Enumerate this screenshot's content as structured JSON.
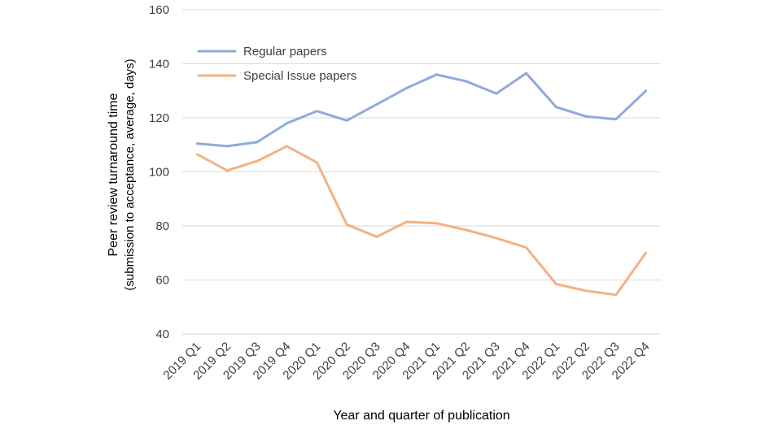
{
  "chart_data": {
    "type": "line",
    "title": "",
    "xlabel": "Year and quarter of publication",
    "ylabel_main": "Peer review turnaround time",
    "ylabel_sub": "(submission to acceptance, average, days)",
    "ylim": [
      40,
      160
    ],
    "yticks": [
      40,
      60,
      80,
      100,
      120,
      140,
      160
    ],
    "grid": true,
    "legend_position": "top-left",
    "categories": [
      "2019 Q1",
      "2019 Q2",
      "2019 Q3",
      "2019 Q4",
      "2020 Q1",
      "2020 Q2",
      "2020 Q3",
      "2020 Q4",
      "2021 Q1",
      "2021 Q2",
      "2021 Q3",
      "2021 Q4",
      "2022 Q1",
      "2022 Q2",
      "2022 Q3",
      "2022 Q4"
    ],
    "series": [
      {
        "name": "Regular papers",
        "color": "#8faadc",
        "values": [
          110.5,
          109.5,
          111,
          118,
          122.5,
          119,
          125,
          131,
          136,
          133.5,
          129,
          136.5,
          124,
          120.5,
          119.5,
          130
        ]
      },
      {
        "name": "Special Issue papers",
        "color": "#f4b183",
        "values": [
          106.5,
          100.5,
          104,
          109.5,
          103.5,
          80.5,
          76,
          81.5,
          81,
          78.5,
          75.5,
          72,
          58.5,
          56,
          54.5,
          70
        ]
      }
    ]
  }
}
